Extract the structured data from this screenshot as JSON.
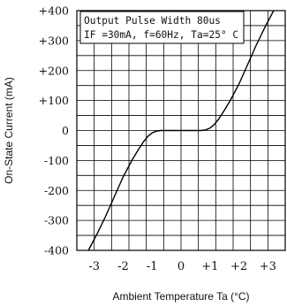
{
  "chart_data": {
    "type": "line",
    "xlabel": "Ambient Temperature Ta (°C)",
    "ylabel": "On-State Current (mA)",
    "xlim": [
      -3.6,
      3.6
    ],
    "ylim": [
      -400,
      400
    ],
    "x_ticks": [
      -3,
      -2,
      -1,
      0,
      1,
      2,
      3
    ],
    "x_tick_labels": [
      "-3",
      "-2",
      "-1",
      "0",
      "+1",
      "+2",
      "+3"
    ],
    "y_ticks": [
      400,
      300,
      200,
      100,
      0,
      -100,
      -200,
      -300,
      -400
    ],
    "y_tick_labels": [
      "+400",
      "+300",
      "+200",
      "+100",
      "0",
      "-100",
      "-200",
      "-300",
      "-400"
    ],
    "grid": true,
    "annotations": [
      "Output Pulse Width 80us",
      "IF =30mA, f=60Hz, Ta=25° C"
    ],
    "series": [
      {
        "x": [
          -3.2,
          -2.9,
          -2.6,
          -2.3,
          -2.0,
          -1.7,
          -1.5,
          -1.3,
          -1.15,
          -1.0,
          -0.85,
          -0.7,
          0.0,
          0.7,
          0.85,
          1.0,
          1.15,
          1.3,
          1.5,
          1.7,
          2.0,
          2.3,
          2.6,
          2.9,
          3.2
        ],
        "values": [
          -400,
          -345,
          -285,
          -220,
          -155,
          -100,
          -68,
          -38,
          -20,
          -8,
          -2,
          0,
          0,
          0,
          2,
          8,
          20,
          38,
          68,
          100,
          155,
          220,
          285,
          345,
          400
        ]
      }
    ]
  }
}
